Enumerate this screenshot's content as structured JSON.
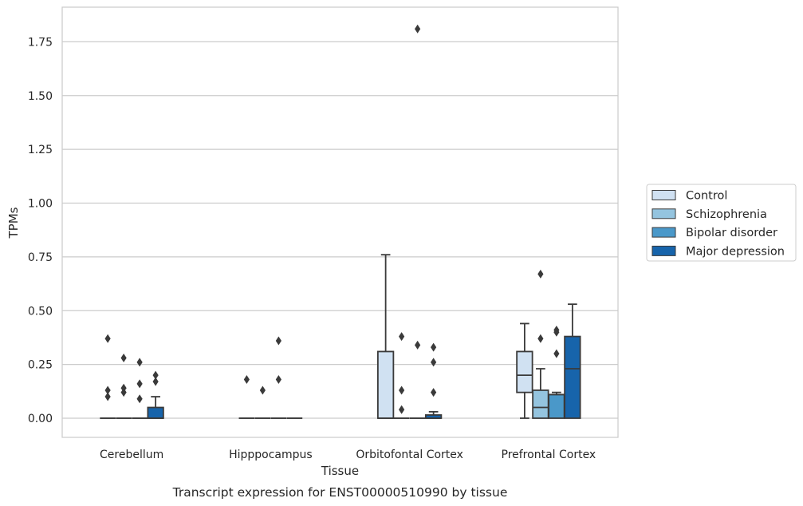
{
  "chart_data": {
    "type": "box",
    "ylabel": "TPMs",
    "xlabel": "Tissue",
    "caption": "Transcript expression for ENST00000510990 by tissue",
    "ylim": [
      -0.09,
      1.9
    ],
    "yticks": [
      "0.00",
      "0.25",
      "0.50",
      "0.75",
      "1.00",
      "1.25",
      "1.50",
      "1.75"
    ],
    "ytick_values": [
      0,
      0.25,
      0.5,
      0.75,
      1.0,
      1.25,
      1.5,
      1.75
    ],
    "grid": "horizontal",
    "legend_position": "right",
    "categories": [
      "Cerebellum",
      "Hipppocampus",
      "Orbitofontal Cortex",
      "Prefrontal Cortex"
    ],
    "series": [
      {
        "name": "Control",
        "color": "#d0e1f2",
        "boxes": [
          {
            "q1": 0,
            "median": 0,
            "q3": 0,
            "whisker_low": 0,
            "whisker_high": 0,
            "outliers": [
              0.37,
              0.13,
              0.1
            ]
          },
          {
            "q1": 0,
            "median": 0,
            "q3": 0,
            "whisker_low": 0,
            "whisker_high": 0,
            "outliers": [
              0.18
            ]
          },
          {
            "q1": 0,
            "median": 0,
            "q3": 0.31,
            "whisker_low": 0,
            "whisker_high": 0.76,
            "outliers": []
          },
          {
            "q1": 0.12,
            "median": 0.2,
            "q3": 0.31,
            "whisker_low": 0,
            "whisker_high": 0.44,
            "outliers": []
          }
        ]
      },
      {
        "name": "Schizophrenia",
        "color": "#94c4df",
        "boxes": [
          {
            "q1": 0,
            "median": 0,
            "q3": 0,
            "whisker_low": 0,
            "whisker_high": 0,
            "outliers": [
              0.28,
              0.14,
              0.12
            ]
          },
          {
            "q1": 0,
            "median": 0,
            "q3": 0,
            "whisker_low": 0,
            "whisker_high": 0,
            "outliers": [
              0.13
            ]
          },
          {
            "q1": 0,
            "median": 0,
            "q3": 0,
            "whisker_low": 0,
            "whisker_high": 0,
            "outliers": [
              0.38,
              0.13,
              0.04
            ]
          },
          {
            "q1": 0,
            "median": 0.05,
            "q3": 0.13,
            "whisker_low": 0,
            "whisker_high": 0.23,
            "outliers": [
              0.67,
              0.37
            ]
          }
        ]
      },
      {
        "name": "Bipolar disorder",
        "color": "#4a98c9",
        "boxes": [
          {
            "q1": 0,
            "median": 0,
            "q3": 0,
            "whisker_low": 0,
            "whisker_high": 0,
            "outliers": [
              0.26,
              0.16,
              0.09
            ]
          },
          {
            "q1": 0,
            "median": 0,
            "q3": 0,
            "whisker_low": 0,
            "whisker_high": 0,
            "outliers": [
              0.36,
              0.18
            ]
          },
          {
            "q1": 0,
            "median": 0,
            "q3": 0,
            "whisker_low": 0,
            "whisker_high": 0,
            "outliers": [
              1.81,
              0.34
            ]
          },
          {
            "q1": 0,
            "median": 0.11,
            "q3": 0.11,
            "whisker_low": 0,
            "whisker_high": 0.12,
            "outliers": [
              0.41,
              0.4,
              0.3
            ]
          }
        ]
      },
      {
        "name": "Major depression",
        "color": "#1764ab",
        "boxes": [
          {
            "q1": 0,
            "median": 0,
            "q3": 0.05,
            "whisker_low": 0,
            "whisker_high": 0.1,
            "outliers": [
              0.2,
              0.17
            ]
          },
          {
            "q1": 0,
            "median": 0,
            "q3": 0,
            "whisker_low": 0,
            "whisker_high": 0,
            "outliers": []
          },
          {
            "q1": 0,
            "median": 0,
            "q3": 0.015,
            "whisker_low": 0,
            "whisker_high": 0.03,
            "outliers": [
              0.33,
              0.26,
              0.12
            ]
          },
          {
            "q1": 0,
            "median": 0.23,
            "q3": 0.38,
            "whisker_low": 0,
            "whisker_high": 0.53,
            "outliers": []
          }
        ]
      }
    ]
  }
}
